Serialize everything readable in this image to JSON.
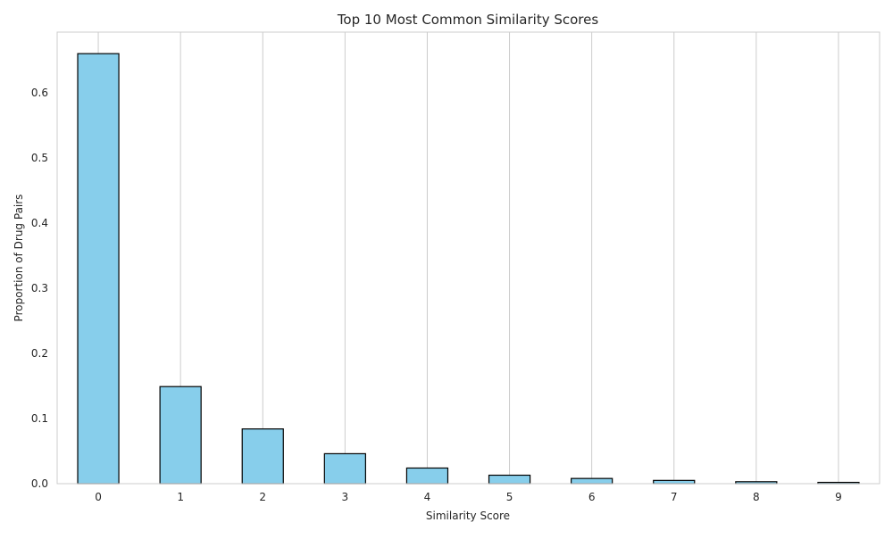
{
  "chart_data": {
    "type": "bar",
    "title": "Top 10 Most Common Similarity Scores",
    "xlabel": "Similarity Score",
    "ylabel": "Proportion of Drug Pairs",
    "categories": [
      "0",
      "1",
      "2",
      "3",
      "4",
      "5",
      "6",
      "7",
      "8",
      "9"
    ],
    "values": [
      0.66,
      0.149,
      0.084,
      0.046,
      0.024,
      0.013,
      0.008,
      0.005,
      0.003,
      0.002
    ],
    "ylim": [
      0,
      0.693
    ],
    "yticks": [
      0.0,
      0.1,
      0.2,
      0.3,
      0.4,
      0.5,
      0.6
    ],
    "ytick_labels": [
      "0.0",
      "0.1",
      "0.2",
      "0.3",
      "0.4",
      "0.5",
      "0.6"
    ],
    "grid": "vertical",
    "colors": {
      "bar_fill": "#87ceeb",
      "bar_edge": "#000000",
      "grid": "#cccccc",
      "frame": "#cccccc"
    }
  }
}
